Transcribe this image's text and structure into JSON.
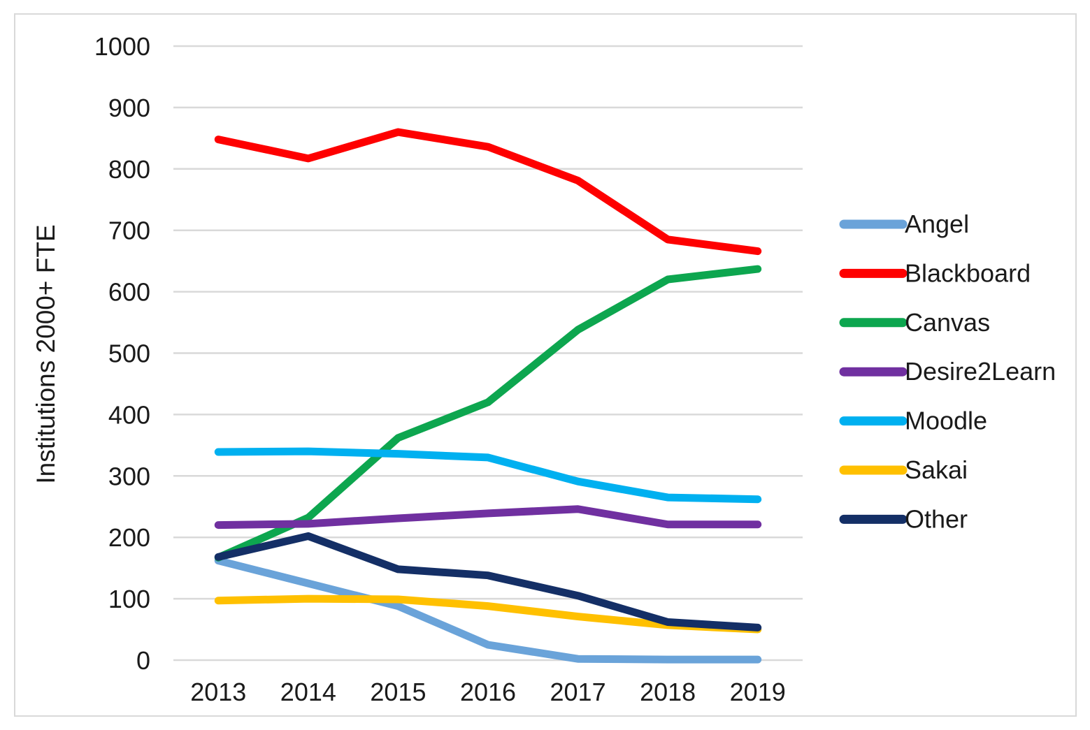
{
  "chart_data": {
    "type": "line",
    "title": "",
    "xlabel": "",
    "ylabel": "Institutions 2000+ FTE",
    "categories": [
      "2013",
      "2014",
      "2015",
      "2016",
      "2017",
      "2018",
      "2019"
    ],
    "y_ticks": [
      0,
      100,
      200,
      300,
      400,
      500,
      600,
      700,
      800,
      900,
      1000
    ],
    "ylim": [
      0,
      1000
    ],
    "grid": true,
    "legend_position": "right",
    "colors": {
      "grid": "#d9d9d9",
      "text": "#1a1a1a",
      "frame": "#d9d9d9",
      "background": "#ffffff"
    },
    "series": [
      {
        "name": "Angel",
        "color": "#6aa3d9",
        "values": [
          162,
          125,
          88,
          25,
          2,
          1,
          1
        ]
      },
      {
        "name": "Blackboard",
        "color": "#fe0000",
        "values": [
          848,
          817,
          860,
          836,
          781,
          685,
          666
        ]
      },
      {
        "name": "Canvas",
        "color": "#0da64f",
        "values": [
          167,
          232,
          362,
          420,
          538,
          620,
          637
        ]
      },
      {
        "name": "Desire2Learn",
        "color": "#7030a0",
        "values": [
          220,
          222,
          231,
          239,
          246,
          221,
          221
        ]
      },
      {
        "name": "Moodle",
        "color": "#00b0f0",
        "values": [
          339,
          340,
          336,
          330,
          291,
          265,
          262
        ]
      },
      {
        "name": "Sakai",
        "color": "#ffc000",
        "values": [
          97,
          100,
          99,
          88,
          71,
          57,
          50
        ]
      },
      {
        "name": "Other",
        "color": "#142f66",
        "values": [
          168,
          202,
          148,
          138,
          105,
          62,
          53
        ]
      }
    ]
  }
}
